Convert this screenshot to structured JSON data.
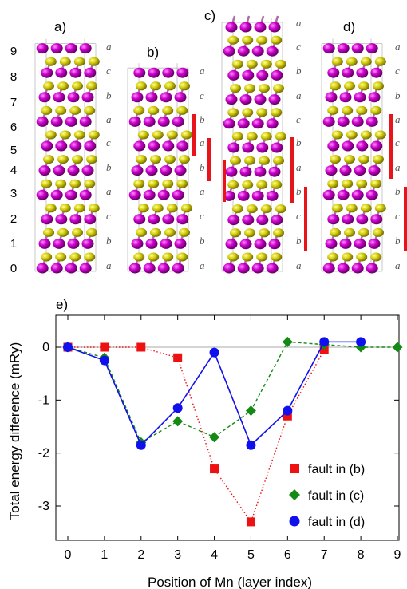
{
  "structures": {
    "layer_numbers": [
      "0",
      "1",
      "2",
      "3",
      "4",
      "5",
      "6",
      "7",
      "8",
      "9"
    ],
    "panels": [
      {
        "label": "a)",
        "stacking": [
          "a",
          "b",
          "c",
          "a",
          "b",
          "c",
          "a",
          "b",
          "c",
          "a"
        ]
      },
      {
        "label": "b)",
        "stacking": [
          "a",
          "b",
          "c",
          "a",
          "b",
          "a",
          "b",
          "c",
          "a"
        ]
      },
      {
        "label": "c)",
        "stacking": [
          "a",
          "b",
          "c",
          "b",
          "a",
          "b",
          "c",
          "a",
          "b",
          "c",
          "a"
        ]
      },
      {
        "label": "d)",
        "stacking": [
          "a",
          "b",
          "c",
          "b",
          "a",
          "c",
          "a",
          "b",
          "c",
          "a"
        ]
      }
    ],
    "atom_colors": {
      "large": "#cc00cc",
      "small": "#d6cf0e"
    },
    "fault_marker_color": "#e8141c"
  },
  "chart_data": {
    "type": "line",
    "panel_label": "e)",
    "xlabel": "Position of Mn (layer index)",
    "ylabel": "Total energy difference (mRy)",
    "xlim": [
      0,
      9
    ],
    "ylim": [
      -3.9,
      0.5
    ],
    "xticks": [
      0,
      1,
      2,
      3,
      4,
      5,
      6,
      7,
      8,
      9
    ],
    "yticks": [
      0,
      -1,
      -2,
      -3
    ],
    "ytick_labels": [
      "0",
      "-1",
      "-2",
      "-3"
    ],
    "legend_position": "bottom-right",
    "grid": false,
    "series": [
      {
        "name": "fault in (b)",
        "marker": "square",
        "line": "dotted",
        "color": "#ee1111",
        "x": [
          0,
          1,
          2,
          3,
          4,
          5,
          6,
          7
        ],
        "y": [
          0,
          0,
          0,
          -0.2,
          -2.3,
          -3.3,
          -1.3,
          -0.05
        ]
      },
      {
        "name": "fault in (c)",
        "marker": "diamond",
        "line": "dashed",
        "color": "#138a13",
        "x": [
          0,
          1,
          2,
          3,
          4,
          5,
          6,
          7,
          8,
          9
        ],
        "y": [
          0,
          -0.2,
          -1.8,
          -1.4,
          -1.7,
          -1.2,
          0.1,
          0.05,
          0,
          0
        ]
      },
      {
        "name": "fault in (d)",
        "marker": "circle",
        "line": "solid",
        "color": "#1010ee",
        "x": [
          0,
          1,
          2,
          3,
          4,
          5,
          6,
          7,
          8
        ],
        "y": [
          0,
          -0.25,
          -1.85,
          -1.15,
          -0.1,
          -1.85,
          -1.2,
          0.1,
          0.1
        ]
      }
    ]
  }
}
